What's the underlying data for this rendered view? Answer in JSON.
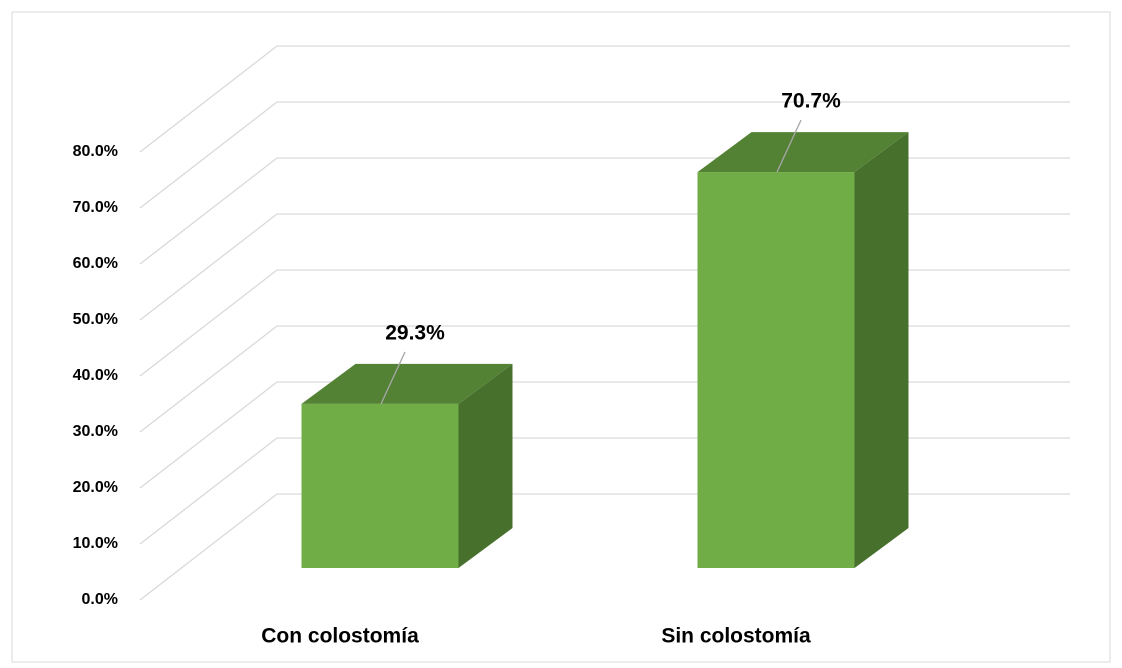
{
  "chart_data": {
    "type": "bar3d",
    "categories": [
      "Con colostomía",
      "Sin colostomía"
    ],
    "values": [
      29.3,
      70.7
    ],
    "value_labels": [
      "29.3%",
      "70.7%"
    ],
    "color": "#70ad47",
    "ylim": [
      0,
      80
    ],
    "yticks": [
      {
        "value": 0,
        "label": "0.0%"
      },
      {
        "value": 10,
        "label": "10.0%"
      },
      {
        "value": 20,
        "label": "20.0%"
      },
      {
        "value": 30,
        "label": "30.0%"
      },
      {
        "value": 40,
        "label": "40.0%"
      },
      {
        "value": 50,
        "label": "50.0%"
      },
      {
        "value": 60,
        "label": "60.0%"
      },
      {
        "value": 70,
        "label": "70.0%"
      },
      {
        "value": 80,
        "label": "80.0%"
      }
    ],
    "grid": true
  }
}
